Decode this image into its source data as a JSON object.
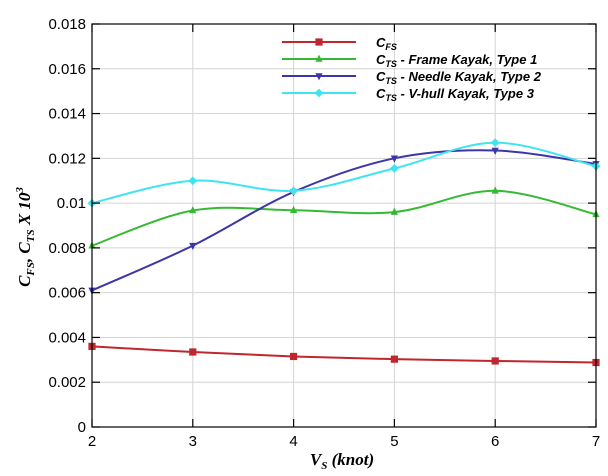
{
  "chart_data": {
    "type": "line",
    "xlabel": "V_S (knot)",
    "ylabel": "C_FS, C_TS X 10^3",
    "xlabel_parts": {
      "main": "V",
      "sub": "S",
      "rest": " (knot)"
    },
    "ylabel_parts": {
      "c1": "C",
      "sub1": "FS",
      "sep": ", ",
      "c2": "C",
      "sub2": "TS",
      "times": " X 10",
      "sup": "3"
    },
    "xlim": [
      2,
      7
    ],
    "ylim": [
      0,
      0.018
    ],
    "x_ticks": [
      "2",
      "3",
      "4",
      "5",
      "6",
      "7"
    ],
    "y_ticks": [
      "0",
      "0.002",
      "0.004",
      "0.006",
      "0.008",
      "0.01",
      "0.012",
      "0.014",
      "0.016",
      "0.018"
    ],
    "legend_position": "top-right",
    "x": [
      2,
      3,
      4,
      5,
      6,
      7
    ],
    "series": [
      {
        "name": "C_FS",
        "label": {
          "c": "C",
          "sub": "FS",
          "rest": ""
        },
        "color": "#c0262d",
        "marker": "square",
        "values": [
          0.0036,
          0.00335,
          0.00315,
          0.00303,
          0.00295,
          0.00288
        ]
      },
      {
        "name": "C_TS - Frame Kayak, Type 1",
        "label": {
          "c": "C",
          "sub": "TS",
          "rest": " - Frame Kayak, Type 1"
        },
        "color": "#35b933",
        "marker": "triangle-up",
        "values": [
          0.0081,
          0.00967,
          0.00968,
          0.0096,
          0.01055,
          0.0095
        ]
      },
      {
        "name": "C_TS - Needle Kayak, Type 2",
        "label": {
          "c": "C",
          "sub": "TS",
          "rest": " - Needle Kayak, Type 2"
        },
        "color": "#3d36a8",
        "marker": "triangle-down",
        "values": [
          0.0061,
          0.0081,
          0.0105,
          0.012,
          0.01235,
          0.01175
        ]
      },
      {
        "name": "C_TS - V-hull Kayak, Type 3",
        "label": {
          "c": "C",
          "sub": "TS",
          "rest": " - V-hull Kayak, Type 3"
        },
        "color": "#40e4ee",
        "marker": "diamond",
        "values": [
          0.01,
          0.011,
          0.01055,
          0.01155,
          0.0127,
          0.01165
        ]
      }
    ]
  }
}
